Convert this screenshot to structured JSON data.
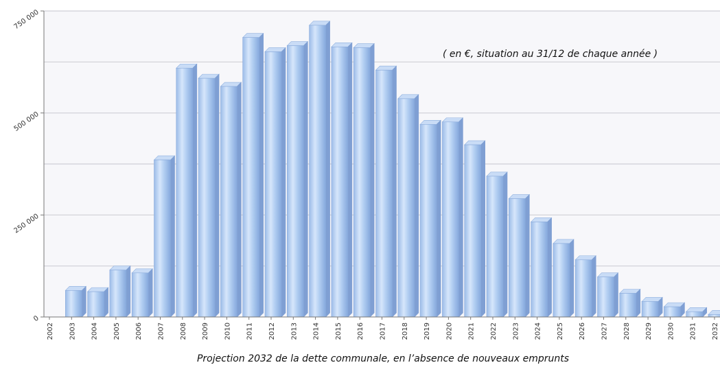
{
  "chart_data": {
    "type": "bar",
    "title": "",
    "xlabel": "Projection 2032 de la dette communale, en l’absence de nouveaux emprunts",
    "ylabel": "",
    "annotation": "( en €, situation au 31/12 de chaque année )",
    "categories": [
      "2002",
      "2003",
      "2004",
      "2005",
      "2006",
      "2007",
      "2008",
      "2009",
      "2010",
      "2011",
      "2012",
      "2013",
      "2014",
      "2015",
      "2016",
      "2017",
      "2018",
      "2019",
      "2020",
      "2021",
      "2022",
      "2023",
      "2024",
      "2025",
      "2026",
      "2027",
      "2028",
      "2029",
      "2030",
      "2031",
      "2032"
    ],
    "values": [
      0,
      65000,
      62000,
      115000,
      108000,
      385000,
      610000,
      585000,
      565000,
      685000,
      650000,
      665000,
      715000,
      662000,
      660000,
      605000,
      535000,
      472000,
      478000,
      422000,
      345000,
      290000,
      233000,
      180000,
      140000,
      98000,
      58000,
      38000,
      25000,
      13000,
      6000
    ],
    "ylim": [
      0,
      750000
    ],
    "yticks": [
      0,
      250000,
      500000,
      750000
    ],
    "ytick_labels": [
      "0",
      "250 000",
      "500 000",
      "750 000"
    ],
    "grid": true,
    "bar_color": "#a9c8ef"
  }
}
